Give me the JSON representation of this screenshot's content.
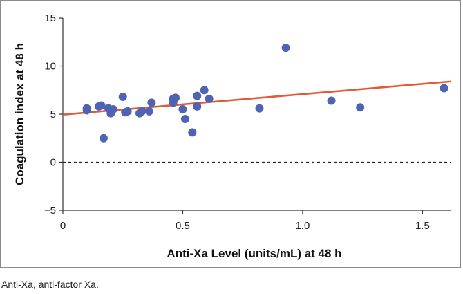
{
  "chart_data": {
    "type": "scatter",
    "title": "",
    "xlabel": "Anti-Xa Level (units/mL) at 48 h",
    "ylabel": "Coagulation index at 48 h",
    "xlim": [
      0,
      1.62
    ],
    "ylim": [
      -5,
      15
    ],
    "xticks": [
      0,
      0.5,
      1.0,
      1.5
    ],
    "xtick_labels": [
      "0",
      "0.5",
      "1.0",
      "1.5"
    ],
    "yticks": [
      -5,
      0,
      5,
      10,
      15
    ],
    "ytick_labels": [
      "−5",
      "0",
      "5",
      "10",
      "15"
    ],
    "reference_line": {
      "y": 0,
      "style": "dashed"
    },
    "trendline": {
      "x": [
        0,
        1.62
      ],
      "y": [
        4.95,
        8.4
      ],
      "color": "#e05a3a"
    },
    "point_color": "#4f63b3",
    "points": [
      {
        "x": 0.1,
        "y": 5.6
      },
      {
        "x": 0.1,
        "y": 5.4
      },
      {
        "x": 0.15,
        "y": 5.8
      },
      {
        "x": 0.16,
        "y": 5.9
      },
      {
        "x": 0.17,
        "y": 2.5
      },
      {
        "x": 0.19,
        "y": 5.6
      },
      {
        "x": 0.2,
        "y": 5.1
      },
      {
        "x": 0.21,
        "y": 5.5
      },
      {
        "x": 0.25,
        "y": 6.8
      },
      {
        "x": 0.26,
        "y": 5.2
      },
      {
        "x": 0.27,
        "y": 5.3
      },
      {
        "x": 0.32,
        "y": 5.1
      },
      {
        "x": 0.33,
        "y": 5.3
      },
      {
        "x": 0.36,
        "y": 5.3
      },
      {
        "x": 0.37,
        "y": 6.2
      },
      {
        "x": 0.46,
        "y": 6.6
      },
      {
        "x": 0.46,
        "y": 6.2
      },
      {
        "x": 0.47,
        "y": 6.7
      },
      {
        "x": 0.5,
        "y": 5.5
      },
      {
        "x": 0.51,
        "y": 4.5
      },
      {
        "x": 0.54,
        "y": 3.1
      },
      {
        "x": 0.56,
        "y": 6.9
      },
      {
        "x": 0.56,
        "y": 5.8
      },
      {
        "x": 0.59,
        "y": 7.5
      },
      {
        "x": 0.61,
        "y": 6.6
      },
      {
        "x": 0.82,
        "y": 5.6
      },
      {
        "x": 0.93,
        "y": 11.9
      },
      {
        "x": 1.12,
        "y": 6.4
      },
      {
        "x": 1.24,
        "y": 5.7
      },
      {
        "x": 1.59,
        "y": 7.7
      }
    ]
  },
  "caption": "Anti-Xa, anti-factor Xa."
}
